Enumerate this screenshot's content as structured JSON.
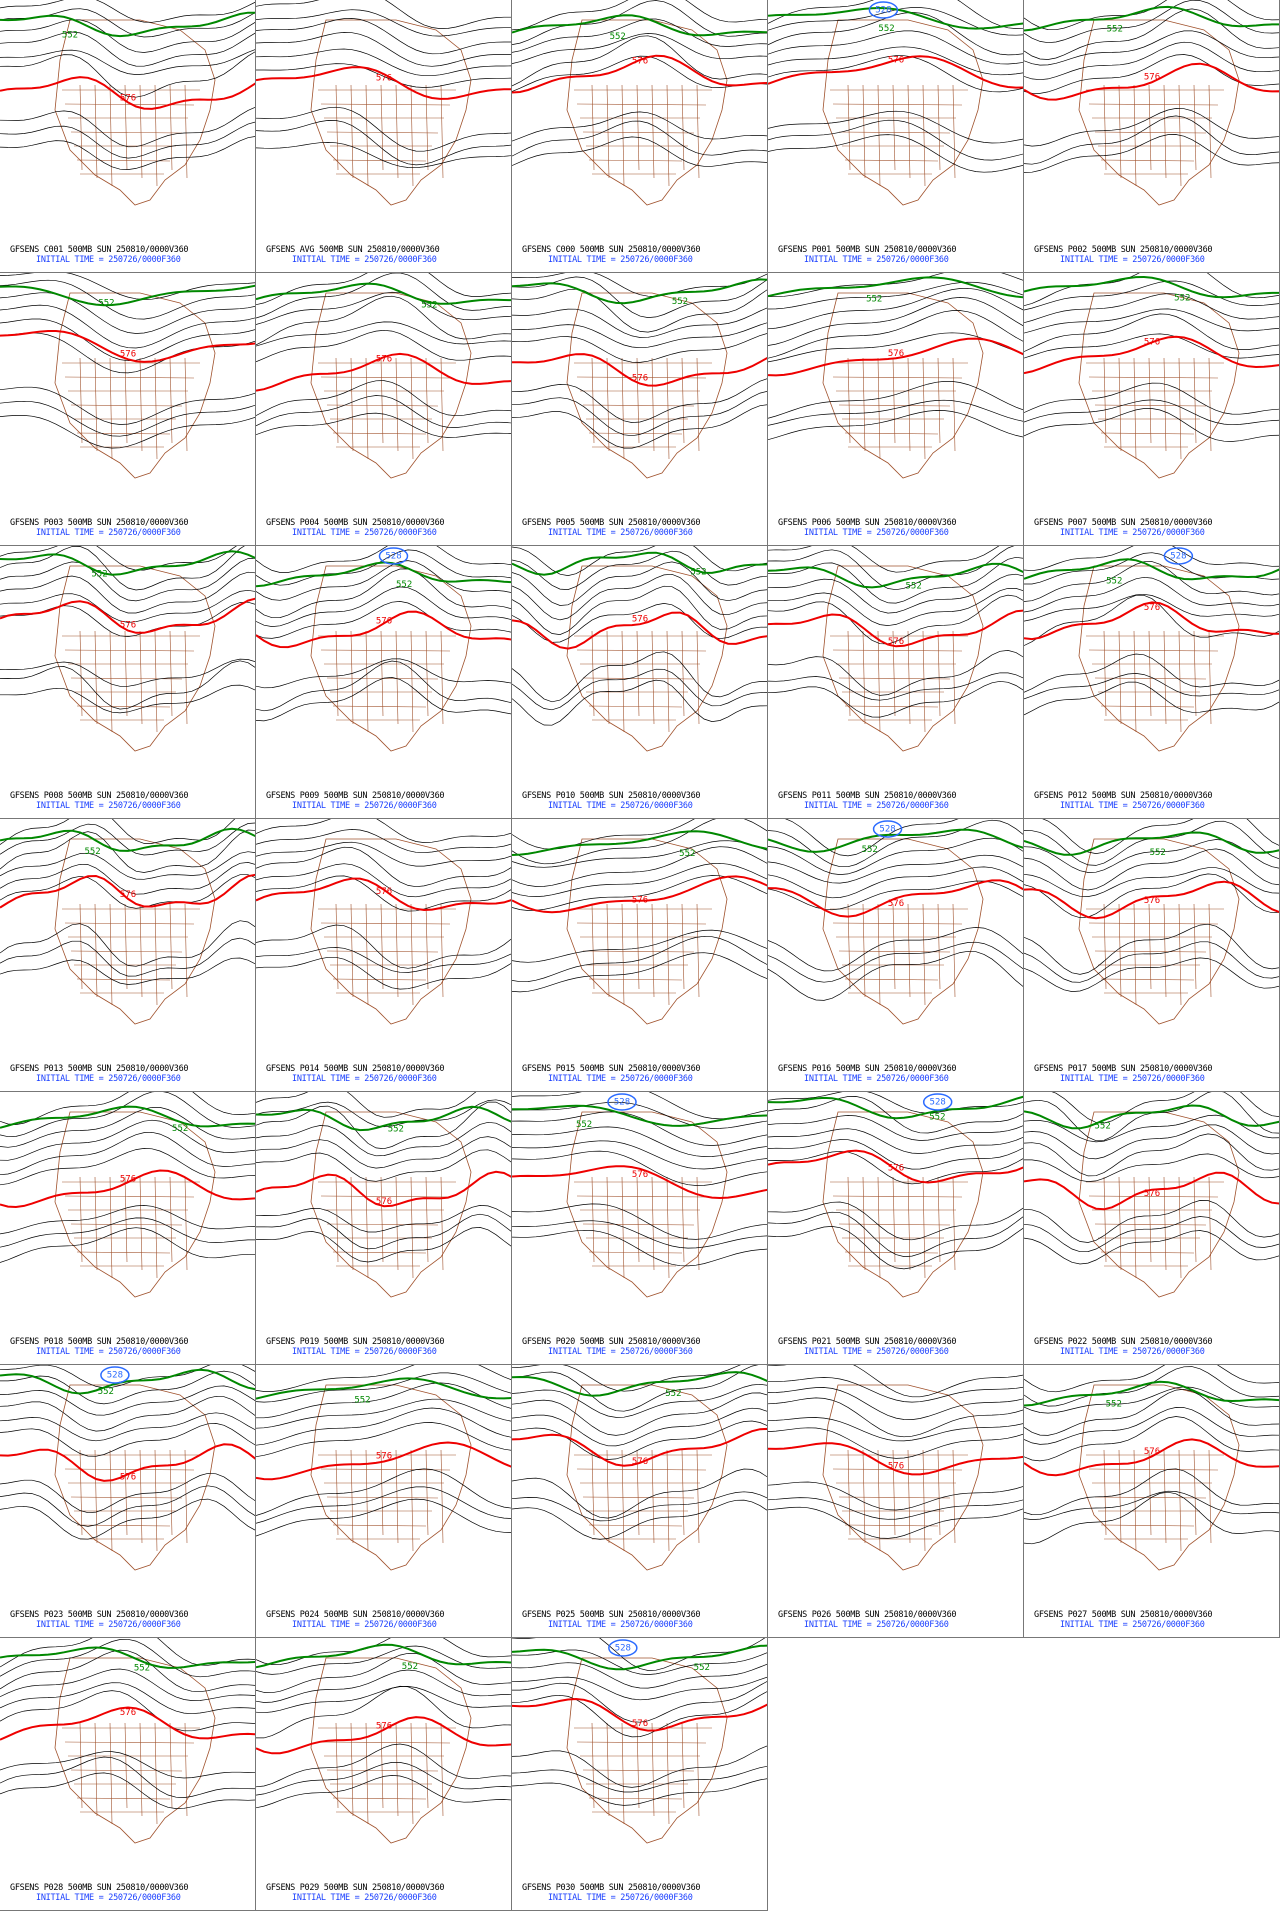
{
  "panels": [
    {
      "line1": "GFSENS C001 500MB SUN 250810/0000V360",
      "line2": "INITIAL TIME = 250726/0000F360",
      "labels": [
        "576",
        "552"
      ]
    },
    {
      "line1": "GFSENS AVG 500MB SUN 250810/0000V360",
      "line2": "INITIAL TIME = 250726/0000F360",
      "labels": [
        "576"
      ]
    },
    {
      "line1": "GFSENS C000 500MB SUN 250810/0000V360",
      "line2": "INITIAL TIME = 250726/0000F360",
      "labels": [
        "576",
        "552"
      ]
    },
    {
      "line1": "GFSENS P001 500MB SUN 250810/0000V360",
      "line2": "INITIAL TIME = 250726/0000F360",
      "labels": [
        "576",
        "552",
        "528"
      ]
    },
    {
      "line1": "GFSENS P002 500MB SUN 250810/0000V360",
      "line2": "INITIAL TIME = 250726/0000F360",
      "labels": [
        "576",
        "552"
      ]
    },
    {
      "line1": "GFSENS P003 500MB SUN 250810/0000V360",
      "line2": "INITIAL TIME = 250726/0000F360",
      "labels": [
        "576",
        "552"
      ]
    },
    {
      "line1": "GFSENS P004 500MB SUN 250810/0000V360",
      "line2": "INITIAL TIME = 250726/0000F360",
      "labels": [
        "576",
        "552"
      ]
    },
    {
      "line1": "GFSENS P005 500MB SUN 250810/0000V360",
      "line2": "INITIAL TIME = 250726/0000F360",
      "labels": [
        "576",
        "552"
      ]
    },
    {
      "line1": "GFSENS P006 500MB SUN 250810/0000V360",
      "line2": "INITIAL TIME = 250726/0000F360",
      "labels": [
        "576",
        "552"
      ]
    },
    {
      "line1": "GFSENS P007 500MB SUN 250810/0000V360",
      "line2": "INITIAL TIME = 250726/0000F360",
      "labels": [
        "576",
        "552"
      ]
    },
    {
      "line1": "GFSENS P008 500MB SUN 250810/0000V360",
      "line2": "INITIAL TIME = 250726/0000F360",
      "labels": [
        "576",
        "552"
      ]
    },
    {
      "line1": "GFSENS P009 500MB SUN 250810/0000V360",
      "line2": "INITIAL TIME = 250726/0000F360",
      "labels": [
        "576",
        "552",
        "528"
      ]
    },
    {
      "line1": "GFSENS P010 500MB SUN 250810/0000V360",
      "line2": "INITIAL TIME = 250726/0000F360",
      "labels": [
        "576",
        "552"
      ]
    },
    {
      "line1": "GFSENS P011 500MB SUN 250810/0000V360",
      "line2": "INITIAL TIME = 250726/0000F360",
      "labels": [
        "576",
        "552"
      ]
    },
    {
      "line1": "GFSENS P012 500MB SUN 250810/0000V360",
      "line2": "INITIAL TIME = 250726/0000F360",
      "labels": [
        "576",
        "552",
        "528"
      ]
    },
    {
      "line1": "GFSENS P013 500MB SUN 250810/0000V360",
      "line2": "INITIAL TIME = 250726/0000F360",
      "labels": [
        "576",
        "552"
      ]
    },
    {
      "line1": "GFSENS P014 500MB SUN 250810/0000V360",
      "line2": "INITIAL TIME = 250726/0000F360",
      "labels": [
        "576"
      ]
    },
    {
      "line1": "GFSENS P015 500MB SUN 250810/0000V360",
      "line2": "INITIAL TIME = 250726/0000F360",
      "labels": [
        "576",
        "552"
      ]
    },
    {
      "line1": "GFSENS P016 500MB SUN 250810/0000V360",
      "line2": "INITIAL TIME = 250726/0000F360",
      "labels": [
        "576",
        "552",
        "528"
      ]
    },
    {
      "line1": "GFSENS P017 500MB SUN 250810/0000V360",
      "line2": "INITIAL TIME = 250726/0000F360",
      "labels": [
        "576",
        "552"
      ]
    },
    {
      "line1": "GFSENS P018 500MB SUN 250810/0000V360",
      "line2": "INITIAL TIME = 250726/0000F360",
      "labels": [
        "576",
        "552"
      ]
    },
    {
      "line1": "GFSENS P019 500MB SUN 250810/0000V360",
      "line2": "INITIAL TIME = 250726/0000F360",
      "labels": [
        "576",
        "552"
      ]
    },
    {
      "line1": "GFSENS P020 500MB SUN 250810/0000V360",
      "line2": "INITIAL TIME = 250726/0000F360",
      "labels": [
        "576",
        "552",
        "528"
      ]
    },
    {
      "line1": "GFSENS P021 500MB SUN 250810/0000V360",
      "line2": "INITIAL TIME = 250726/0000F360",
      "labels": [
        "576",
        "552",
        "528"
      ]
    },
    {
      "line1": "GFSENS P022 500MB SUN 250810/0000V360",
      "line2": "INITIAL TIME = 250726/0000F360",
      "labels": [
        "576",
        "552"
      ]
    },
    {
      "line1": "GFSENS P023 500MB SUN 250810/0000V360",
      "line2": "INITIAL TIME = 250726/0000F360",
      "labels": [
        "576",
        "552",
        "528"
      ]
    },
    {
      "line1": "GFSENS P024 500MB SUN 250810/0000V360",
      "line2": "INITIAL TIME = 250726/0000F360",
      "labels": [
        "576",
        "552"
      ]
    },
    {
      "line1": "GFSENS P025 500MB SUN 250810/0000V360",
      "line2": "INITIAL TIME = 250726/0000F360",
      "labels": [
        "576",
        "552"
      ]
    },
    {
      "line1": "GFSENS P026 500MB SUN 250810/0000V360",
      "line2": "INITIAL TIME = 250726/0000F360",
      "labels": [
        "576"
      ]
    },
    {
      "line1": "GFSENS P027 500MB SUN 250810/0000V360",
      "line2": "INITIAL TIME = 250726/0000F360",
      "labels": [
        "576",
        "552"
      ]
    },
    {
      "line1": "GFSENS P028 500MB SUN 250810/0000V360",
      "line2": "INITIAL TIME = 250726/0000F360",
      "labels": [
        "576",
        "552"
      ]
    },
    {
      "line1": "GFSENS P029 500MB SUN 250810/0000V360",
      "line2": "INITIAL TIME = 250726/0000F360",
      "labels": [
        "576",
        "552"
      ]
    },
    {
      "line1": "GFSENS P030 500MB SUN 250810/0000V360",
      "line2": "INITIAL TIME = 250726/0000F360",
      "labels": [
        "576",
        "552",
        "528"
      ]
    }
  ]
}
